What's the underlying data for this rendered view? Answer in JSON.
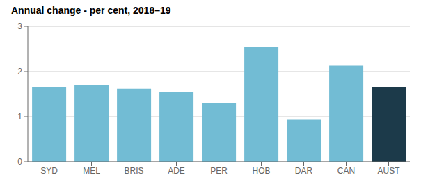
{
  "chart_data": {
    "type": "bar",
    "title": "Annual change - per cent, 2018–19",
    "categories": [
      "SYD",
      "MEL",
      "BRIS",
      "ADE",
      "PER",
      "HOB",
      "DAR",
      "CAN",
      "AUST"
    ],
    "values": [
      1.65,
      1.7,
      1.62,
      1.55,
      1.3,
      2.55,
      0.93,
      2.13,
      1.65
    ],
    "colors": [
      "#72bcd4",
      "#72bcd4",
      "#72bcd4",
      "#72bcd4",
      "#72bcd4",
      "#72bcd4",
      "#72bcd4",
      "#72bcd4",
      "#1c3a4a"
    ],
    "ylim": [
      0,
      3
    ],
    "yticks": [
      0,
      1,
      2,
      3
    ],
    "grid": true
  }
}
